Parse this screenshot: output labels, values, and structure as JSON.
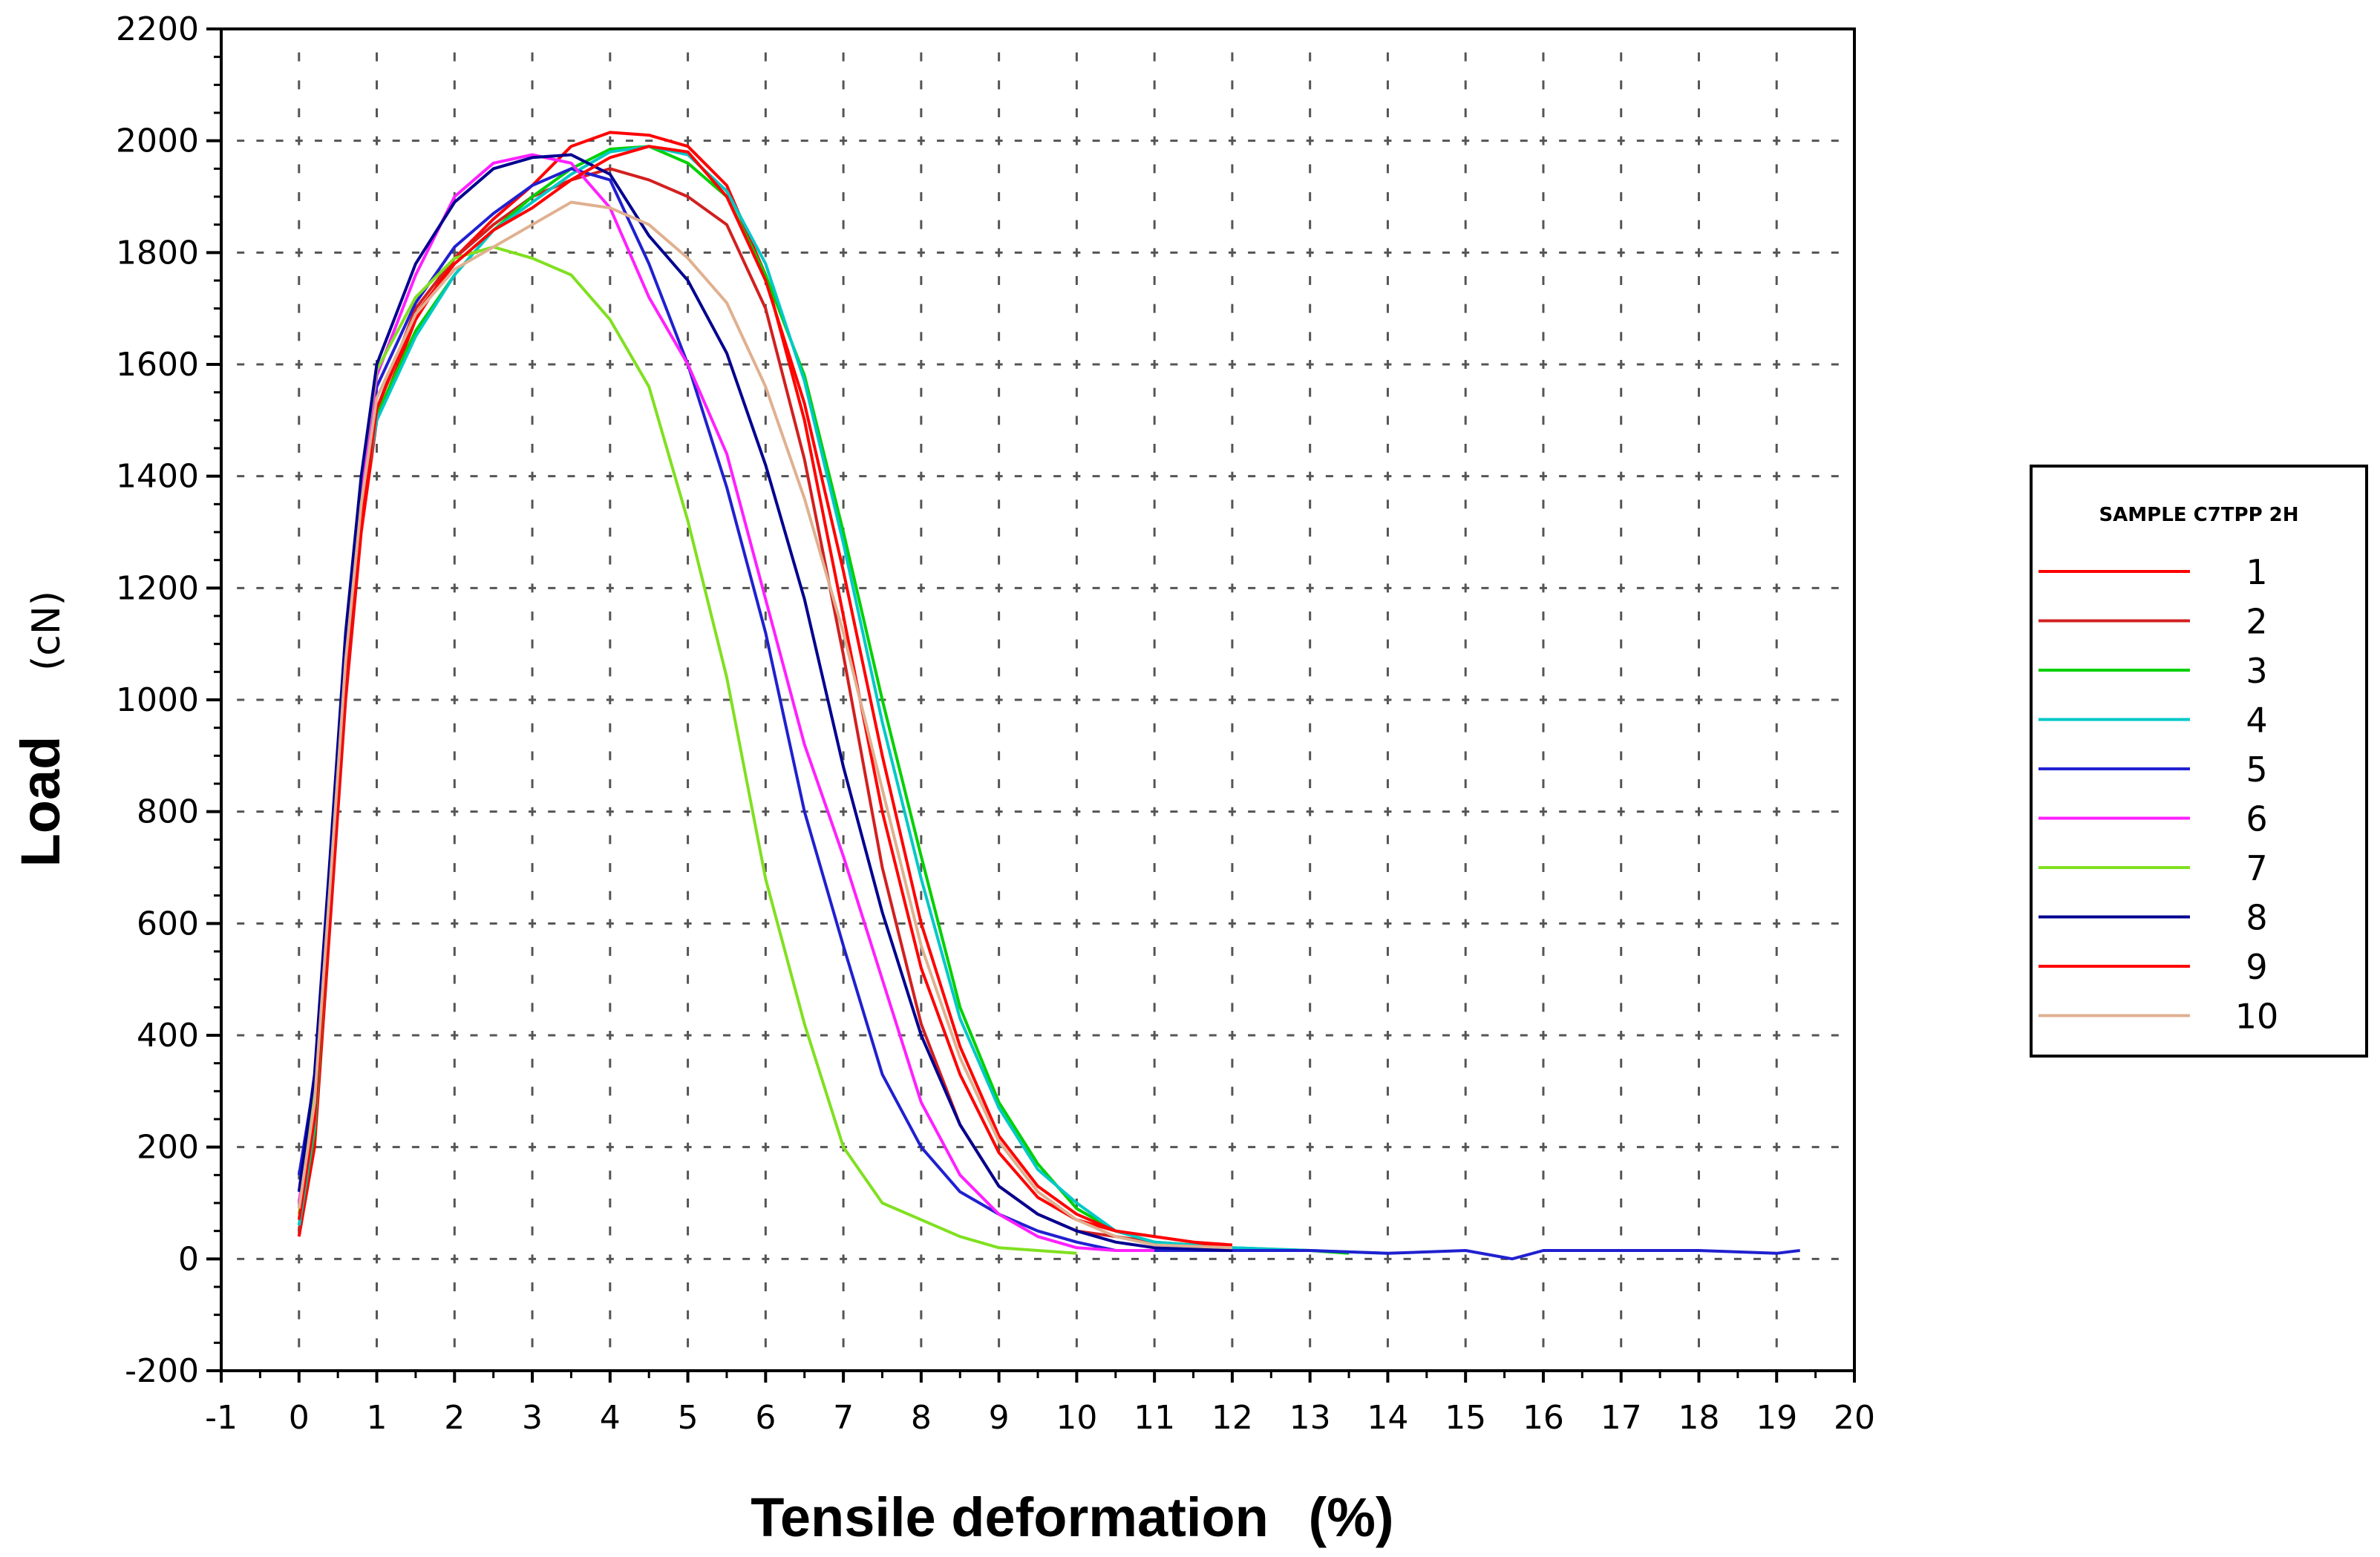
{
  "chart_data": {
    "type": "line",
    "xlabel": "Tensile deformation",
    "xunit": "(%)",
    "ylabel": "Load",
    "yunit": "(cN)",
    "xlim": [
      -1,
      20
    ],
    "ylim": [
      -200,
      2200
    ],
    "xticks": [
      -1,
      0,
      1,
      2,
      3,
      4,
      5,
      6,
      7,
      8,
      9,
      10,
      11,
      12,
      13,
      14,
      15,
      16,
      17,
      18,
      19,
      20
    ],
    "yticks": [
      -200,
      0,
      200,
      400,
      600,
      800,
      1000,
      1200,
      1400,
      1600,
      1800,
      2000,
      2200
    ],
    "grid": "dotted",
    "legend": {
      "title": "SAMPLE C7TPP 2H",
      "placement": "right"
    },
    "series": [
      {
        "name": "1",
        "color": "#ff0000",
        "points": [
          [
            0,
            40
          ],
          [
            0.2,
            200
          ],
          [
            0.4,
            600
          ],
          [
            0.6,
            1000
          ],
          [
            0.8,
            1300
          ],
          [
            1,
            1500
          ],
          [
            1.5,
            1680
          ],
          [
            2,
            1790
          ],
          [
            2.5,
            1860
          ],
          [
            3,
            1920
          ],
          [
            3.5,
            1990
          ],
          [
            4,
            2015
          ],
          [
            4.5,
            2010
          ],
          [
            5,
            1990
          ],
          [
            5.5,
            1920
          ],
          [
            6,
            1760
          ],
          [
            6.5,
            1500
          ],
          [
            7,
            1150
          ],
          [
            7.5,
            800
          ],
          [
            8,
            520
          ],
          [
            8.5,
            330
          ],
          [
            9,
            190
          ],
          [
            9.5,
            110
          ],
          [
            10,
            70
          ],
          [
            10.5,
            50
          ],
          [
            11,
            40
          ],
          [
            11.5,
            30
          ],
          [
            12,
            25
          ]
        ]
      },
      {
        "name": "2",
        "color": "#d22020",
        "points": [
          [
            0,
            50
          ],
          [
            0.2,
            220
          ],
          [
            0.4,
            620
          ],
          [
            0.6,
            1020
          ],
          [
            0.8,
            1320
          ],
          [
            1,
            1520
          ],
          [
            1.5,
            1700
          ],
          [
            2,
            1790
          ],
          [
            2.5,
            1850
          ],
          [
            3,
            1900
          ],
          [
            3.5,
            1930
          ],
          [
            4,
            1950
          ],
          [
            4.5,
            1930
          ],
          [
            5,
            1900
          ],
          [
            5.5,
            1850
          ],
          [
            6,
            1700
          ],
          [
            6.5,
            1430
          ],
          [
            7,
            1080
          ],
          [
            7.5,
            700
          ],
          [
            8,
            420
          ],
          [
            8.5,
            240
          ],
          [
            9,
            130
          ],
          [
            9.5,
            80
          ],
          [
            10,
            50
          ],
          [
            11,
            30
          ],
          [
            12,
            20
          ]
        ]
      },
      {
        "name": "3",
        "color": "#00d000",
        "points": [
          [
            0,
            60
          ],
          [
            0.2,
            230
          ],
          [
            0.4,
            650
          ],
          [
            0.6,
            1050
          ],
          [
            0.8,
            1330
          ],
          [
            1,
            1510
          ],
          [
            1.5,
            1660
          ],
          [
            2,
            1760
          ],
          [
            2.5,
            1840
          ],
          [
            3,
            1900
          ],
          [
            3.5,
            1950
          ],
          [
            4,
            1985
          ],
          [
            4.5,
            1990
          ],
          [
            5,
            1960
          ],
          [
            5.5,
            1900
          ],
          [
            6,
            1760
          ],
          [
            6.5,
            1580
          ],
          [
            7,
            1300
          ],
          [
            7.5,
            1000
          ],
          [
            8,
            720
          ],
          [
            8.5,
            450
          ],
          [
            9,
            280
          ],
          [
            9.5,
            170
          ],
          [
            10,
            90
          ],
          [
            10.5,
            50
          ],
          [
            11,
            30
          ],
          [
            12,
            20
          ],
          [
            13,
            15
          ],
          [
            13.5,
            10
          ]
        ]
      },
      {
        "name": "4",
        "color": "#00c8c8",
        "points": [
          [
            0,
            60
          ],
          [
            0.2,
            240
          ],
          [
            0.4,
            660
          ],
          [
            0.6,
            1060
          ],
          [
            0.8,
            1340
          ],
          [
            1,
            1500
          ],
          [
            1.5,
            1650
          ],
          [
            2,
            1760
          ],
          [
            2.5,
            1840
          ],
          [
            3,
            1890
          ],
          [
            3.5,
            1940
          ],
          [
            4,
            1980
          ],
          [
            4.5,
            1990
          ],
          [
            5,
            1975
          ],
          [
            5.5,
            1910
          ],
          [
            6,
            1780
          ],
          [
            6.5,
            1570
          ],
          [
            7,
            1280
          ],
          [
            7.5,
            960
          ],
          [
            8,
            680
          ],
          [
            8.5,
            430
          ],
          [
            9,
            270
          ],
          [
            9.5,
            160
          ],
          [
            10,
            100
          ],
          [
            10.5,
            50
          ],
          [
            11,
            30
          ],
          [
            12,
            20
          ],
          [
            13,
            15
          ],
          [
            14,
            10
          ]
        ]
      },
      {
        "name": "5",
        "color": "#2020d0",
        "points": [
          [
            0,
            150
          ],
          [
            0.2,
            320
          ],
          [
            0.4,
            700
          ],
          [
            0.6,
            1100
          ],
          [
            0.8,
            1380
          ],
          [
            1,
            1560
          ],
          [
            1.5,
            1710
          ],
          [
            2,
            1810
          ],
          [
            2.5,
            1870
          ],
          [
            3,
            1920
          ],
          [
            3.5,
            1950
          ],
          [
            4,
            1930
          ],
          [
            4.5,
            1780
          ],
          [
            5,
            1600
          ],
          [
            5.5,
            1380
          ],
          [
            6,
            1120
          ],
          [
            6.5,
            800
          ],
          [
            7,
            560
          ],
          [
            7.5,
            330
          ],
          [
            8,
            200
          ],
          [
            8.5,
            120
          ],
          [
            9,
            80
          ],
          [
            9.5,
            50
          ],
          [
            10,
            30
          ],
          [
            10.5,
            15
          ],
          [
            11,
            15
          ],
          [
            12,
            15
          ],
          [
            13,
            15
          ],
          [
            14,
            10
          ],
          [
            15,
            15
          ],
          [
            15.6,
            0
          ],
          [
            16,
            15
          ],
          [
            17,
            15
          ],
          [
            18,
            15
          ],
          [
            19,
            10
          ],
          [
            19.3,
            15
          ]
        ]
      },
      {
        "name": "6",
        "color": "#ff20ff",
        "points": [
          [
            0,
            100
          ],
          [
            0.2,
            300
          ],
          [
            0.4,
            690
          ],
          [
            0.6,
            1090
          ],
          [
            0.8,
            1370
          ],
          [
            1,
            1580
          ],
          [
            1.5,
            1760
          ],
          [
            2,
            1900
          ],
          [
            2.5,
            1960
          ],
          [
            3,
            1975
          ],
          [
            3.5,
            1960
          ],
          [
            4,
            1880
          ],
          [
            4.5,
            1720
          ],
          [
            5,
            1600
          ],
          [
            5.5,
            1440
          ],
          [
            6,
            1180
          ],
          [
            6.5,
            920
          ],
          [
            7,
            720
          ],
          [
            7.5,
            500
          ],
          [
            8,
            280
          ],
          [
            8.5,
            150
          ],
          [
            9,
            80
          ],
          [
            9.5,
            40
          ],
          [
            10,
            20
          ],
          [
            10.5,
            15
          ],
          [
            11,
            15
          ]
        ]
      },
      {
        "name": "7",
        "color": "#80e020",
        "points": [
          [
            0,
            80
          ],
          [
            0.2,
            300
          ],
          [
            0.4,
            700
          ],
          [
            0.6,
            1120
          ],
          [
            0.8,
            1400
          ],
          [
            1,
            1590
          ],
          [
            1.5,
            1720
          ],
          [
            2,
            1790
          ],
          [
            2.5,
            1810
          ],
          [
            3,
            1790
          ],
          [
            3.5,
            1760
          ],
          [
            4,
            1680
          ],
          [
            4.5,
            1560
          ],
          [
            5,
            1320
          ],
          [
            5.5,
            1040
          ],
          [
            6,
            680
          ],
          [
            6.5,
            420
          ],
          [
            7,
            200
          ],
          [
            7.5,
            100
          ],
          [
            8,
            70
          ],
          [
            8.5,
            40
          ],
          [
            9,
            20
          ],
          [
            9.5,
            15
          ],
          [
            10,
            10
          ]
        ]
      },
      {
        "name": "8",
        "color": "#000090",
        "points": [
          [
            0,
            120
          ],
          [
            0.2,
            330
          ],
          [
            0.4,
            720
          ],
          [
            0.6,
            1120
          ],
          [
            0.8,
            1400
          ],
          [
            1,
            1600
          ],
          [
            1.5,
            1780
          ],
          [
            2,
            1890
          ],
          [
            2.5,
            1950
          ],
          [
            3,
            1970
          ],
          [
            3.5,
            1975
          ],
          [
            4,
            1940
          ],
          [
            4.5,
            1830
          ],
          [
            5,
            1750
          ],
          [
            5.5,
            1620
          ],
          [
            6,
            1420
          ],
          [
            6.5,
            1180
          ],
          [
            7,
            880
          ],
          [
            7.5,
            620
          ],
          [
            8,
            400
          ],
          [
            8.5,
            240
          ],
          [
            9,
            130
          ],
          [
            9.5,
            80
          ],
          [
            10,
            50
          ],
          [
            10.5,
            30
          ],
          [
            11,
            20
          ],
          [
            12,
            15
          ]
        ]
      },
      {
        "name": "9",
        "color": "#ff0000",
        "points": [
          [
            0,
            70
          ],
          [
            0.2,
            250
          ],
          [
            0.4,
            640
          ],
          [
            0.6,
            1040
          ],
          [
            0.8,
            1320
          ],
          [
            1,
            1520
          ],
          [
            1.5,
            1690
          ],
          [
            2,
            1780
          ],
          [
            2.5,
            1840
          ],
          [
            3,
            1880
          ],
          [
            3.5,
            1930
          ],
          [
            4,
            1970
          ],
          [
            4.5,
            1990
          ],
          [
            5,
            1980
          ],
          [
            5.5,
            1900
          ],
          [
            6,
            1750
          ],
          [
            6.5,
            1530
          ],
          [
            7,
            1230
          ],
          [
            7.5,
            900
          ],
          [
            8,
            600
          ],
          [
            8.5,
            380
          ],
          [
            9,
            220
          ],
          [
            9.5,
            130
          ],
          [
            10,
            80
          ],
          [
            10.5,
            50
          ],
          [
            11,
            40
          ],
          [
            11.5,
            30
          ],
          [
            12,
            20
          ]
        ]
      },
      {
        "name": "10",
        "color": "#e0b090",
        "points": [
          [
            0,
            90
          ],
          [
            0.2,
            280
          ],
          [
            0.4,
            670
          ],
          [
            0.6,
            1070
          ],
          [
            0.8,
            1350
          ],
          [
            1,
            1540
          ],
          [
            1.5,
            1690
          ],
          [
            2,
            1770
          ],
          [
            2.5,
            1810
          ],
          [
            3,
            1850
          ],
          [
            3.5,
            1890
          ],
          [
            4,
            1880
          ],
          [
            4.5,
            1850
          ],
          [
            5,
            1790
          ],
          [
            5.5,
            1710
          ],
          [
            6,
            1560
          ],
          [
            6.5,
            1360
          ],
          [
            7,
            1120
          ],
          [
            7.5,
            840
          ],
          [
            8,
            560
          ],
          [
            8.5,
            360
          ],
          [
            9,
            210
          ],
          [
            9.5,
            120
          ],
          [
            10,
            70
          ],
          [
            10.5,
            40
          ],
          [
            11,
            25
          ],
          [
            12,
            20
          ]
        ]
      }
    ]
  }
}
